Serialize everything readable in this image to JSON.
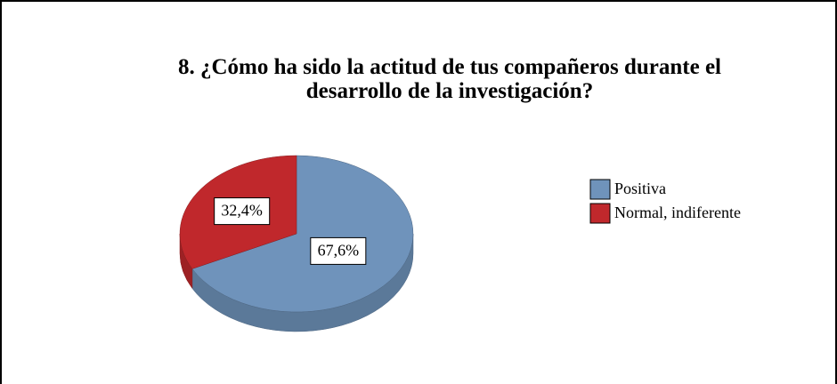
{
  "chart_data": {
    "type": "pie",
    "title": "8. ¿Cómo ha sido la actitud de tus compañeros durante el desarrollo de la investigación?",
    "categories": [
      "Positiva",
      "Normal, indiferente"
    ],
    "values": [
      67.6,
      32.4
    ],
    "value_labels": [
      "67,6%",
      "32,4%"
    ],
    "colors": [
      "#6f93bb",
      "#c0282c"
    ],
    "legend": "right"
  }
}
